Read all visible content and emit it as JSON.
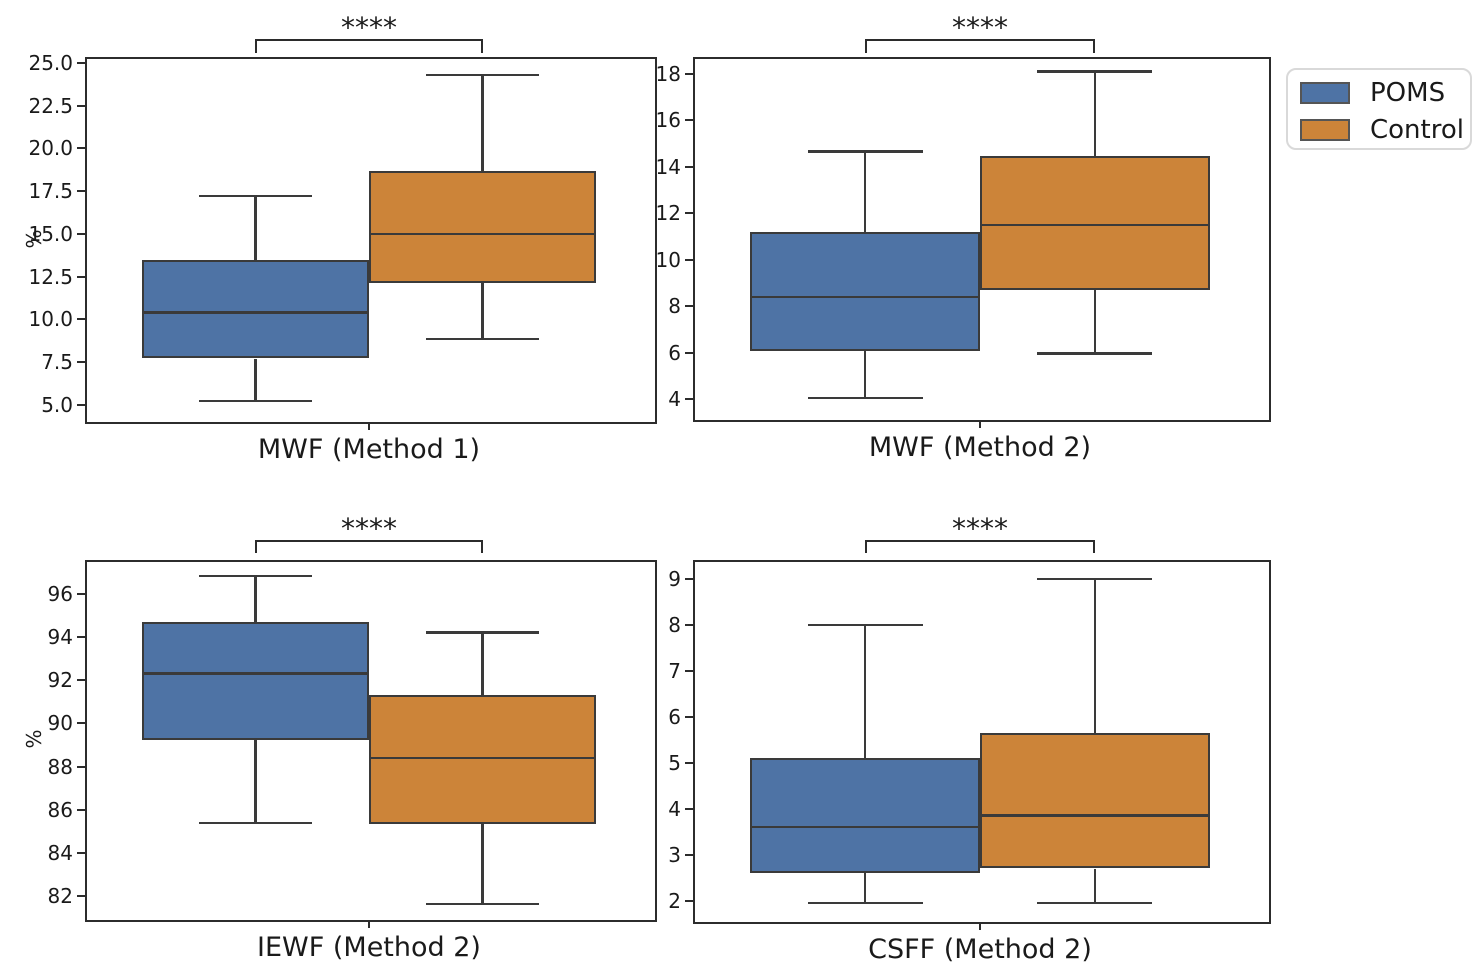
{
  "figure": {
    "background": "#ffffff"
  },
  "legend": {
    "items": [
      {
        "label": "POMS",
        "color": "#4e73a5"
      },
      {
        "label": "Control",
        "color": "#cc8439"
      }
    ]
  },
  "colors": {
    "poms": "#4e73a5",
    "control": "#cc8439",
    "box_edge": "#3a3a3a",
    "spine": "#2c2c2c",
    "bracket": "#2b2b2b",
    "text": "#1a1a1a",
    "legend_border": "#d9d9d9"
  },
  "chart_data": [
    {
      "type": "box",
      "xlabel": "MWF (Method 1)",
      "ylabel": "%",
      "significance": "****",
      "ylim": [
        4.1,
        25.35
      ],
      "yticks": [
        "5.0",
        "7.5",
        "10.0",
        "12.5",
        "15.0",
        "17.5",
        "20.0",
        "22.5",
        "25.0"
      ],
      "legend_position": "upper right outside",
      "series": [
        {
          "name": "POMS",
          "whisker_low": 5.2,
          "q1": 7.7,
          "median": 10.4,
          "q3": 13.45,
          "whisker_high": 17.2
        },
        {
          "name": "Control",
          "whisker_low": 8.85,
          "q1": 12.1,
          "median": 15.0,
          "q3": 18.65,
          "whisker_high": 24.3
        }
      ]
    },
    {
      "type": "box",
      "xlabel": "MWF (Method 2)",
      "ylabel": "",
      "significance": "****",
      "ylim": [
        3.18,
        18.73
      ],
      "yticks": [
        "4",
        "6",
        "8",
        "10",
        "12",
        "14",
        "16",
        "18"
      ],
      "series": [
        {
          "name": "POMS",
          "whisker_low": 4.05,
          "q1": 6.05,
          "median": 8.4,
          "q3": 11.2,
          "whisker_high": 14.65
        },
        {
          "name": "Control",
          "whisker_low": 5.95,
          "q1": 8.7,
          "median": 11.5,
          "q3": 14.45,
          "whisker_high": 18.1
        }
      ]
    },
    {
      "type": "box",
      "xlabel": "IEWF (Method 2)",
      "ylabel": "%",
      "significance": "****",
      "ylim": [
        81.0,
        97.55
      ],
      "yticks": [
        "82",
        "84",
        "86",
        "88",
        "90",
        "92",
        "94",
        "96"
      ],
      "series": [
        {
          "name": "POMS",
          "whisker_low": 85.4,
          "q1": 89.25,
          "median": 92.3,
          "q3": 94.7,
          "whisker_high": 96.8
        },
        {
          "name": "Control",
          "whisker_low": 81.65,
          "q1": 85.35,
          "median": 88.4,
          "q3": 91.3,
          "whisker_high": 94.2
        }
      ]
    },
    {
      "type": "box",
      "xlabel": "CSFF (Method 2)",
      "ylabel": "",
      "significance": "****",
      "ylim": [
        1.58,
        9.41
      ],
      "yticks": [
        "2",
        "3",
        "4",
        "5",
        "6",
        "7",
        "8",
        "9"
      ],
      "series": [
        {
          "name": "POMS",
          "whisker_low": 1.95,
          "q1": 2.6,
          "median": 3.6,
          "q3": 5.1,
          "whisker_high": 8.0
        },
        {
          "name": "Control",
          "whisker_low": 1.95,
          "q1": 2.7,
          "median": 3.85,
          "q3": 5.65,
          "whisker_high": 9.0
        }
      ]
    }
  ]
}
